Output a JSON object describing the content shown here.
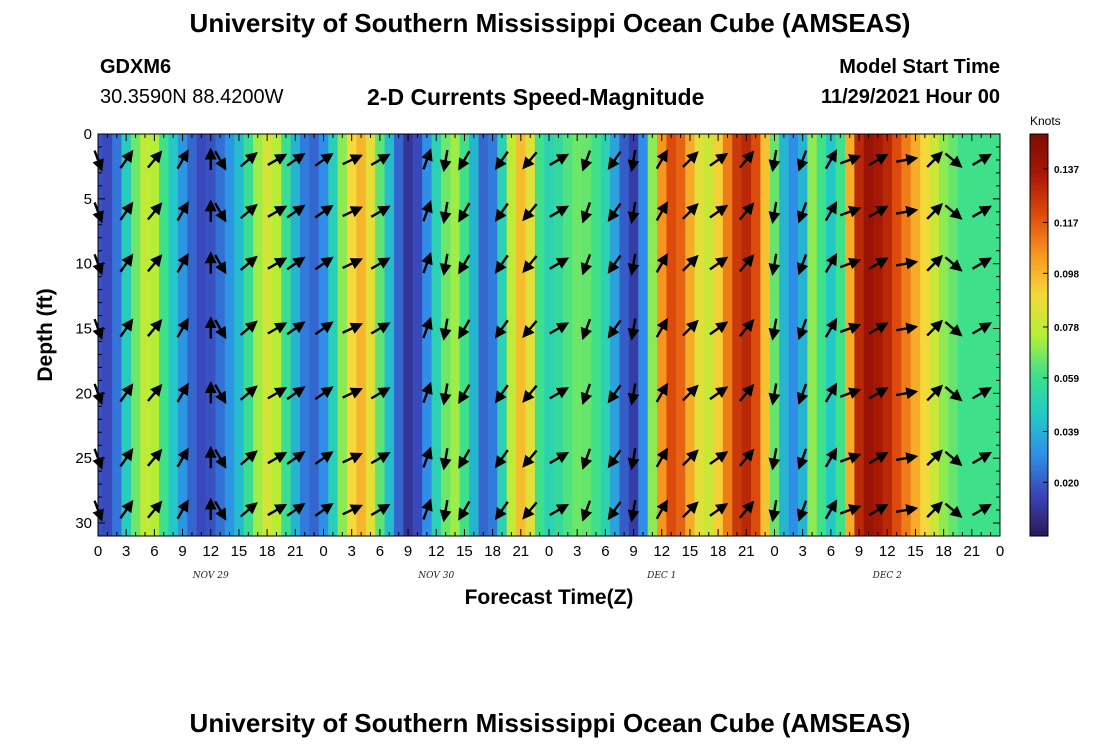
{
  "header": {
    "title": "University of Southern Mississippi Ocean Cube (AMSEAS)",
    "station": "GDXM6",
    "coords": "30.3590N  88.4200W",
    "variable": "2-D Currents Speed-Magnitude",
    "model_start_label": "Model Start Time",
    "model_start_value": "11/29/2021 Hour 00"
  },
  "footer": {
    "title": "University of Southern Mississippi Ocean Cube (AMSEAS)"
  },
  "colors": {
    "scale": [
      "#2a1a55",
      "#3a43b8",
      "#2f8ee8",
      "#22c9c6",
      "#3fe08a",
      "#b4ef36",
      "#f5d83a",
      "#f7961f",
      "#dc4a0c",
      "#a71705",
      "#7c0d02"
    ],
    "arrow": "#000000"
  },
  "chart_data": {
    "type": "heatmap",
    "title": "2-D Currents Speed-Magnitude",
    "xlabel": "Forecast Time(Z)",
    "ylabel": "Depth (ft)",
    "x_hours": [
      0,
      96
    ],
    "ylim": [
      0,
      31
    ],
    "x_tick_labels": [
      "0",
      "3",
      "6",
      "9",
      "12",
      "15",
      "18",
      "21",
      "0",
      "3",
      "6",
      "9",
      "12",
      "15",
      "18",
      "21",
      "0",
      "3",
      "6",
      "9",
      "12",
      "15",
      "18",
      "21",
      "0",
      "3",
      "6",
      "9",
      "12",
      "15",
      "18",
      "21",
      "0"
    ],
    "y_ticks": [
      0,
      5,
      10,
      15,
      20,
      25,
      30
    ],
    "day_labels": [
      {
        "label": "NOV 29",
        "hour": 12
      },
      {
        "label": "NOV 30",
        "hour": 36
      },
      {
        "label": "DEC 1",
        "hour": 60
      },
      {
        "label": "DEC 2",
        "hour": 84
      }
    ],
    "colorbar": {
      "title": "Knots",
      "tick_labels": [
        "0.137",
        "0.117",
        "0.098",
        "0.078",
        "0.059",
        "0.039",
        "0.020"
      ],
      "tick_values": [
        0.137,
        0.117,
        0.098,
        0.078,
        0.059,
        0.039,
        0.02
      ],
      "range": [
        0.0,
        0.15
      ]
    },
    "columns": [
      {
        "hour": 0,
        "speed": 0.018
      },
      {
        "hour": 1,
        "speed": 0.016
      },
      {
        "hour": 2,
        "speed": 0.025
      },
      {
        "hour": 3,
        "speed": 0.047
      },
      {
        "hour": 4,
        "speed": 0.066
      },
      {
        "hour": 5,
        "speed": 0.078
      },
      {
        "hour": 6,
        "speed": 0.075
      },
      {
        "hour": 7,
        "speed": 0.06
      },
      {
        "hour": 8,
        "speed": 0.045
      },
      {
        "hour": 9,
        "speed": 0.032
      },
      {
        "hour": 10,
        "speed": 0.022
      },
      {
        "hour": 11,
        "speed": 0.016
      },
      {
        "hour": 12,
        "speed": 0.018
      },
      {
        "hour": 13,
        "speed": 0.024
      },
      {
        "hour": 14,
        "speed": 0.032
      },
      {
        "hour": 15,
        "speed": 0.042
      },
      {
        "hour": 16,
        "speed": 0.058
      },
      {
        "hour": 17,
        "speed": 0.072
      },
      {
        "hour": 18,
        "speed": 0.082
      },
      {
        "hour": 19,
        "speed": 0.076
      },
      {
        "hour": 20,
        "speed": 0.058
      },
      {
        "hour": 21,
        "speed": 0.04
      },
      {
        "hour": 22,
        "speed": 0.026
      },
      {
        "hour": 23,
        "speed": 0.022
      },
      {
        "hour": 24,
        "speed": 0.03
      },
      {
        "hour": 25,
        "speed": 0.048
      },
      {
        "hour": 26,
        "speed": 0.07
      },
      {
        "hour": 27,
        "speed": 0.09
      },
      {
        "hour": 28,
        "speed": 0.098
      },
      {
        "hour": 29,
        "speed": 0.086
      },
      {
        "hour": 30,
        "speed": 0.064
      },
      {
        "hour": 31,
        "speed": 0.042
      },
      {
        "hour": 32,
        "speed": 0.022
      },
      {
        "hour": 33,
        "speed": 0.01
      },
      {
        "hour": 34,
        "speed": 0.016
      },
      {
        "hour": 35,
        "speed": 0.03
      },
      {
        "hour": 36,
        "speed": 0.05
      },
      {
        "hour": 37,
        "speed": 0.066
      },
      {
        "hour": 38,
        "speed": 0.072
      },
      {
        "hour": 39,
        "speed": 0.06
      },
      {
        "hour": 40,
        "speed": 0.04
      },
      {
        "hour": 41,
        "speed": 0.022
      },
      {
        "hour": 42,
        "speed": 0.026
      },
      {
        "hour": 43,
        "speed": 0.05
      },
      {
        "hour": 44,
        "speed": 0.078
      },
      {
        "hour": 45,
        "speed": 0.096
      },
      {
        "hour": 46,
        "speed": 0.085
      },
      {
        "hour": 47,
        "speed": 0.06
      },
      {
        "hour": 48,
        "speed": 0.05
      },
      {
        "hour": 49,
        "speed": 0.055
      },
      {
        "hour": 50,
        "speed": 0.062
      },
      {
        "hour": 51,
        "speed": 0.066
      },
      {
        "hour": 52,
        "speed": 0.065
      },
      {
        "hour": 53,
        "speed": 0.06
      },
      {
        "hour": 54,
        "speed": 0.05
      },
      {
        "hour": 55,
        "speed": 0.035
      },
      {
        "hour": 56,
        "speed": 0.02
      },
      {
        "hour": 57,
        "speed": 0.012
      },
      {
        "hour": 58,
        "speed": 0.03
      },
      {
        "hour": 59,
        "speed": 0.07
      },
      {
        "hour": 60,
        "speed": 0.105
      },
      {
        "hour": 61,
        "speed": 0.12
      },
      {
        "hour": 62,
        "speed": 0.115
      },
      {
        "hour": 63,
        "speed": 0.1
      },
      {
        "hour": 64,
        "speed": 0.085
      },
      {
        "hour": 65,
        "speed": 0.08
      },
      {
        "hour": 66,
        "speed": 0.092
      },
      {
        "hour": 67,
        "speed": 0.11
      },
      {
        "hour": 68,
        "speed": 0.125
      },
      {
        "hour": 69,
        "speed": 0.13
      },
      {
        "hour": 70,
        "speed": 0.12
      },
      {
        "hour": 71,
        "speed": 0.095
      },
      {
        "hour": 72,
        "speed": 0.065
      },
      {
        "hour": 73,
        "speed": 0.04
      },
      {
        "hour": 74,
        "speed": 0.03
      },
      {
        "hour": 75,
        "speed": 0.04
      },
      {
        "hour": 76,
        "speed": 0.07
      },
      {
        "hour": 77,
        "speed": 0.06
      },
      {
        "hour": 78,
        "speed": 0.045
      },
      {
        "hour": 79,
        "speed": 0.06
      },
      {
        "hour": 80,
        "speed": 0.1
      },
      {
        "hour": 81,
        "speed": 0.13
      },
      {
        "hour": 82,
        "speed": 0.14
      },
      {
        "hour": 83,
        "speed": 0.135
      },
      {
        "hour": 84,
        "speed": 0.13
      },
      {
        "hour": 85,
        "speed": 0.12
      },
      {
        "hour": 86,
        "speed": 0.11
      },
      {
        "hour": 87,
        "speed": 0.1
      },
      {
        "hour": 88,
        "speed": 0.09
      },
      {
        "hour": 89,
        "speed": 0.08
      },
      {
        "hour": 90,
        "speed": 0.07
      },
      {
        "hour": 91,
        "speed": 0.065
      },
      {
        "hour": 92,
        "speed": 0.06
      },
      {
        "hour": 93,
        "speed": 0.06
      },
      {
        "hour": 94,
        "speed": 0.06
      },
      {
        "hour": 95,
        "speed": 0.06
      },
      {
        "hour": 96,
        "speed": 0.06
      }
    ],
    "arrow_depths_ft": [
      2,
      6,
      10,
      15,
      20,
      25,
      29
    ],
    "arrows": [
      {
        "hour": 0,
        "dir": 160
      },
      {
        "hour": 3,
        "dir": 35
      },
      {
        "hour": 6,
        "dir": 40
      },
      {
        "hour": 9,
        "dir": 30
      },
      {
        "hour": 12,
        "dir": 0
      },
      {
        "hour": 13,
        "dir": 150
      },
      {
        "hour": 16,
        "dir": 50
      },
      {
        "hour": 19,
        "dir": 60
      },
      {
        "hour": 21,
        "dir": 55
      },
      {
        "hour": 24,
        "dir": 55
      },
      {
        "hour": 27,
        "dir": 65
      },
      {
        "hour": 30,
        "dir": 60
      },
      {
        "hour": 35,
        "dir": 20
      },
      {
        "hour": 37,
        "dir": 190
      },
      {
        "hour": 39,
        "dir": 210
      },
      {
        "hour": 43,
        "dir": 215
      },
      {
        "hour": 46,
        "dir": 220
      },
      {
        "hour": 49,
        "dir": 60
      },
      {
        "hour": 52,
        "dir": 200
      },
      {
        "hour": 55,
        "dir": 215
      },
      {
        "hour": 57,
        "dir": 190
      },
      {
        "hour": 60,
        "dir": 30
      },
      {
        "hour": 63,
        "dir": 45
      },
      {
        "hour": 66,
        "dir": 55
      },
      {
        "hour": 69,
        "dir": 40
      },
      {
        "hour": 72,
        "dir": 190
      },
      {
        "hour": 75,
        "dir": 200
      },
      {
        "hour": 78,
        "dir": 30
      },
      {
        "hour": 80,
        "dir": 70
      },
      {
        "hour": 83,
        "dir": 60
      },
      {
        "hour": 86,
        "dir": 80
      },
      {
        "hour": 89,
        "dir": 45
      },
      {
        "hour": 91,
        "dir": 130
      },
      {
        "hour": 94,
        "dir": 60
      }
    ]
  }
}
